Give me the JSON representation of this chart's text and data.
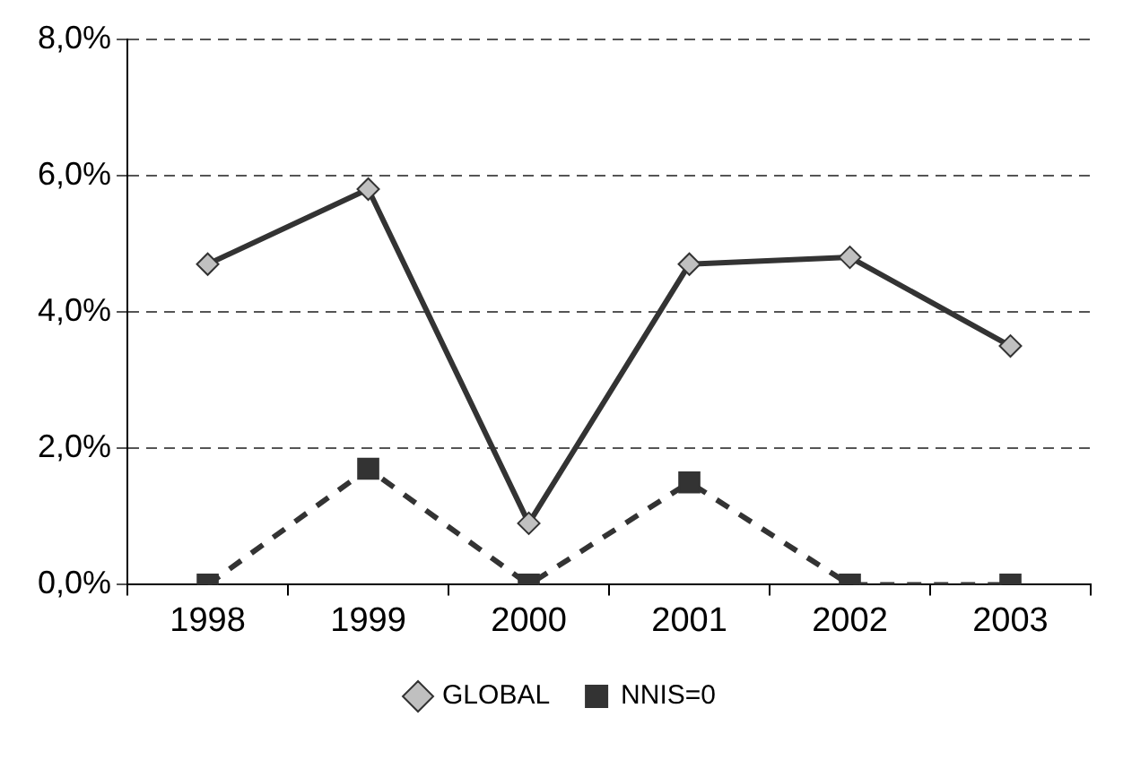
{
  "chart_data": {
    "type": "line",
    "categories": [
      "1998",
      "1999",
      "2000",
      "2001",
      "2002",
      "2003"
    ],
    "series": [
      {
        "name": "GLOBAL",
        "color": "#333333",
        "values": [
          4.7,
          5.8,
          0.9,
          4.7,
          4.8,
          3.5
        ],
        "marker": "diamond",
        "line_style": "solid"
      },
      {
        "name": "NNIS=0",
        "color": "#333333",
        "values": [
          0,
          1.7,
          0,
          1.5,
          0,
          0
        ],
        "marker": "square",
        "line_style": "dashed"
      }
    ],
    "ylim": [
      0,
      8
    ],
    "yticks": [
      {
        "value": 0,
        "label": "0,0%"
      },
      {
        "value": 2,
        "label": "2,0%"
      },
      {
        "value": 4,
        "label": "4,0%"
      },
      {
        "value": 6,
        "label": "6,0%"
      },
      {
        "value": 8,
        "label": "8,0%"
      }
    ],
    "grid": "y",
    "legend": "bottom"
  }
}
